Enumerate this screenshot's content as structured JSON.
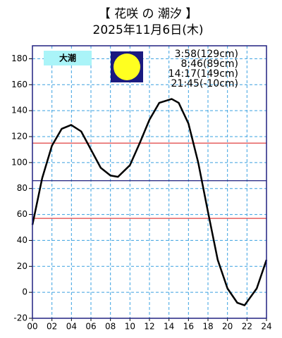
{
  "chart_data": {
    "type": "line",
    "title": "【 花咲 の 潮汐 】",
    "subtitle": "2025年11月6日(木)",
    "tide_label": "大潮",
    "tide_times": [
      "3:58(129cm)",
      "8:46(89cm)",
      "14:17(149cm)",
      "21:45(-10cm)"
    ],
    "x": [
      0,
      1,
      2,
      3,
      3.97,
      5,
      6,
      7,
      8,
      8.77,
      10,
      11,
      12,
      13,
      14.28,
      15,
      16,
      17,
      18,
      19,
      20,
      21,
      21.75,
      23,
      24
    ],
    "series": [
      {
        "color": "#000000",
        "values": [
          52,
          88,
          113,
          126,
          129,
          124,
          110,
          96,
          90,
          89,
          98,
          115,
          133,
          146,
          149,
          146,
          130,
          100,
          62,
          25,
          3,
          -8,
          -10,
          3,
          25
        ]
      }
    ],
    "xlim": [
      0,
      24
    ],
    "xticks": [
      {
        "value": 0,
        "label": "00"
      },
      {
        "value": 2,
        "label": "02"
      },
      {
        "value": 4,
        "label": "04"
      },
      {
        "value": 6,
        "label": "06"
      },
      {
        "value": 8,
        "label": "08"
      },
      10,
      12,
      14,
      16,
      18,
      20,
      22,
      24
    ],
    "ylim": [
      -20,
      190
    ],
    "yticks": [
      -20,
      0,
      20,
      40,
      60,
      80,
      100,
      120,
      140,
      160,
      180
    ],
    "grid": true,
    "reference_lines": [
      {
        "value": 115,
        "color": "#e04040"
      },
      {
        "value": 86,
        "color": "#202080"
      },
      {
        "value": 57,
        "color": "#e04040"
      }
    ]
  }
}
